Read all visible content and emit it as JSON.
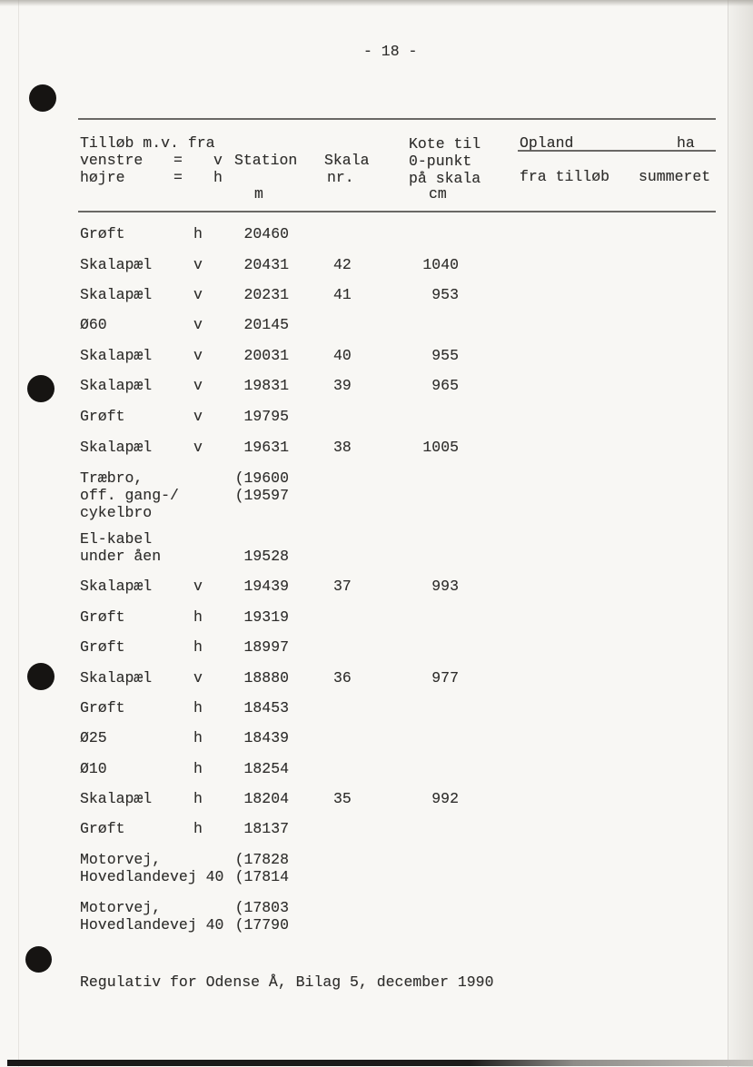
{
  "page": {
    "page_number": "- 18 -",
    "footer": "Regulativ for Odense Å, Bilag 5, december 1990"
  },
  "colors": {
    "paper": "#f8f7f4",
    "ink": "#2e2d2b",
    "rule": "#514f4b",
    "hole_punch": "#161412"
  },
  "icons": {
    "hole_punch": "filled-black-circle"
  },
  "table": {
    "header": {
      "tributary": {
        "line1": "Tilløb m.v. fra",
        "line2_label": "venstre",
        "line2_eq": "=",
        "line2_code": "v",
        "line3_label": "højre",
        "line3_eq": "=",
        "line3_code": "h"
      },
      "station": {
        "title": "Station",
        "unit": "m"
      },
      "skala": {
        "title": "Skala",
        "subtitle": "nr."
      },
      "kote": {
        "line1": "Kote til",
        "line2": "0-punkt",
        "line3": "på skala",
        "unit": "cm"
      },
      "opland": {
        "title": "Opland",
        "unit": "ha",
        "sub_left": "fra tilløb",
        "sub_right": "summeret"
      }
    },
    "rows": [
      {
        "label": "Grøft",
        "side": "h",
        "station": "20460",
        "skala": "",
        "kote": ""
      },
      {
        "label": "Skalapæl",
        "side": "v",
        "station": "20431",
        "skala": "42",
        "kote": "1040"
      },
      {
        "label": "Skalapæl",
        "side": "v",
        "station": "20231",
        "skala": "41",
        "kote": "953"
      },
      {
        "label": "Ø60",
        "side": "v",
        "station": "20145",
        "skala": "",
        "kote": ""
      },
      {
        "label": "Skalapæl",
        "side": "v",
        "station": "20031",
        "skala": "40",
        "kote": "955"
      },
      {
        "label": "Skalapæl",
        "side": "v",
        "station": "19831",
        "skala": "39",
        "kote": "965"
      },
      {
        "label": "Grøft",
        "side": "v",
        "station": "19795",
        "skala": "",
        "kote": ""
      },
      {
        "label": "Skalapæl",
        "side": "v",
        "station": "19631",
        "skala": "38",
        "kote": "1005"
      },
      {
        "label": "Træbro,\noff. gang-/\ncykelbro",
        "side": "",
        "station": "(19600\n(19597",
        "skala": "",
        "kote": ""
      },
      {
        "label": "El-kabel\nunder åen",
        "side": "",
        "station": "\n19528",
        "skala": "",
        "kote": ""
      },
      {
        "label": "Skalapæl",
        "side": "v",
        "station": "19439",
        "skala": "37",
        "kote": "993"
      },
      {
        "label": "Grøft",
        "side": "h",
        "station": "19319",
        "skala": "",
        "kote": ""
      },
      {
        "label": "Grøft",
        "side": "h",
        "station": "18997",
        "skala": "",
        "kote": ""
      },
      {
        "label": "Skalapæl",
        "side": "v",
        "station": "18880",
        "skala": "36",
        "kote": "977"
      },
      {
        "label": "Grøft",
        "side": "h",
        "station": "18453",
        "skala": "",
        "kote": ""
      },
      {
        "label": "Ø25",
        "side": "h",
        "station": "18439",
        "skala": "",
        "kote": ""
      },
      {
        "label": "Ø10",
        "side": "h",
        "station": "18254",
        "skala": "",
        "kote": ""
      },
      {
        "label": "Skalapæl",
        "side": "h",
        "station": "18204",
        "skala": "35",
        "kote": "992"
      },
      {
        "label": "Grøft",
        "side": "h",
        "station": "18137",
        "skala": "",
        "kote": ""
      },
      {
        "label": "Motorvej,\nHovedlandevej 40",
        "side": "",
        "station": "(17828\n(17814",
        "skala": "",
        "kote": ""
      },
      {
        "label": "Motorvej,\nHovedlandevej 40",
        "side": "",
        "station": "(17803\n(17790",
        "skala": "",
        "kote": ""
      }
    ]
  }
}
